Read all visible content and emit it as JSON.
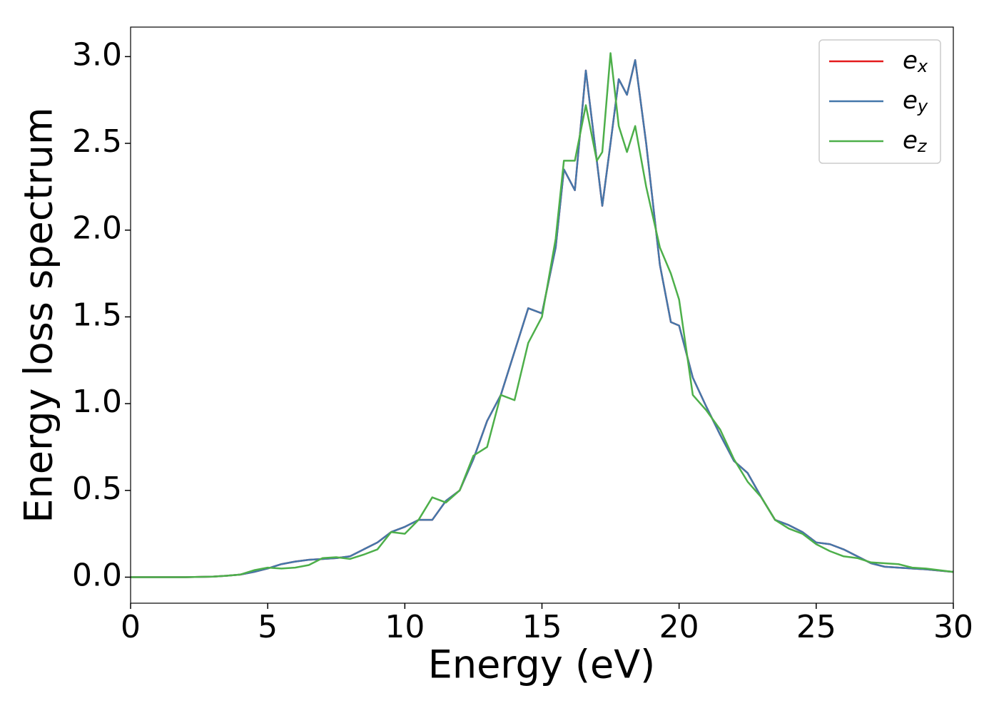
{
  "chart_data": {
    "type": "line",
    "xlabel": "Energy (eV)",
    "ylabel": "Energy loss spectrum",
    "x": [
      0,
      1,
      2,
      3,
      3.5,
      4,
      4.5,
      5,
      5.5,
      6,
      6.5,
      7,
      7.5,
      8,
      8.5,
      9,
      9.5,
      10,
      10.5,
      11,
      11.5,
      12,
      12.5,
      13,
      13.5,
      14,
      14.5,
      15,
      15.5,
      15.8,
      16.2,
      16.6,
      17,
      17.2,
      17.5,
      17.8,
      18.1,
      18.4,
      18.8,
      19.3,
      19.7,
      20,
      20.5,
      21,
      21.5,
      22,
      22.5,
      23,
      23.5,
      24,
      24.5,
      25,
      25.5,
      26,
      26.5,
      27,
      27.5,
      28,
      28.5,
      29,
      30
    ],
    "series": [
      {
        "name": "ex",
        "color": "#e41a1c",
        "values": [
          0,
          0,
          0,
          0.003,
          0.008,
          0.015,
          0.03,
          0.05,
          0.075,
          0.09,
          0.1,
          0.105,
          0.11,
          0.12,
          0.16,
          0.2,
          0.26,
          0.29,
          0.33,
          0.33,
          0.44,
          0.5,
          0.68,
          0.9,
          1.05,
          1.3,
          1.55,
          1.52,
          1.9,
          2.35,
          2.23,
          2.92,
          2.4,
          2.14,
          2.5,
          2.87,
          2.78,
          2.98,
          2.5,
          1.8,
          1.47,
          1.45,
          1.15,
          0.98,
          0.82,
          0.67,
          0.6,
          0.46,
          0.33,
          0.3,
          0.26,
          0.2,
          0.19,
          0.16,
          0.12,
          0.08,
          0.06,
          0.055,
          0.05,
          0.045,
          0.03
        ]
      },
      {
        "name": "ey",
        "color": "#4477aa",
        "values": [
          0,
          0,
          0,
          0.003,
          0.008,
          0.015,
          0.03,
          0.05,
          0.075,
          0.09,
          0.1,
          0.105,
          0.11,
          0.12,
          0.16,
          0.2,
          0.26,
          0.29,
          0.33,
          0.33,
          0.44,
          0.5,
          0.68,
          0.9,
          1.05,
          1.3,
          1.55,
          1.52,
          1.9,
          2.35,
          2.23,
          2.92,
          2.4,
          2.14,
          2.5,
          2.87,
          2.78,
          2.98,
          2.5,
          1.8,
          1.47,
          1.45,
          1.15,
          0.98,
          0.82,
          0.67,
          0.6,
          0.46,
          0.33,
          0.3,
          0.26,
          0.2,
          0.19,
          0.16,
          0.12,
          0.08,
          0.06,
          0.055,
          0.05,
          0.045,
          0.03
        ]
      },
      {
        "name": "ez",
        "color": "#4daf4a",
        "values": [
          0,
          0,
          0,
          0.003,
          0.008,
          0.015,
          0.04,
          0.055,
          0.05,
          0.055,
          0.07,
          0.11,
          0.115,
          0.105,
          0.13,
          0.16,
          0.26,
          0.25,
          0.33,
          0.46,
          0.43,
          0.5,
          0.7,
          0.75,
          1.05,
          1.02,
          1.35,
          1.5,
          1.95,
          2.4,
          2.4,
          2.72,
          2.4,
          2.45,
          3.02,
          2.6,
          2.45,
          2.6,
          2.25,
          1.9,
          1.75,
          1.6,
          1.05,
          0.96,
          0.85,
          0.68,
          0.55,
          0.46,
          0.33,
          0.28,
          0.25,
          0.19,
          0.15,
          0.12,
          0.11,
          0.085,
          0.08,
          0.075,
          0.055,
          0.05,
          0.03
        ]
      }
    ],
    "xlim": [
      0,
      30
    ],
    "xticks": [
      0,
      5,
      10,
      15,
      20,
      25,
      30
    ],
    "ylim": [
      -0.15,
      3.17
    ],
    "yticks": [
      {
        "value": 0,
        "label": "0.0"
      },
      {
        "value": 0.5,
        "label": "0.5"
      },
      {
        "value": 1,
        "label": "1.0"
      },
      {
        "value": 1.5,
        "label": "1.5"
      },
      {
        "value": 2,
        "label": "2.0"
      },
      {
        "value": 2.5,
        "label": "2.5"
      },
      {
        "value": 3,
        "label": "3.0"
      }
    ],
    "legend": "upper right",
    "grid": false
  }
}
